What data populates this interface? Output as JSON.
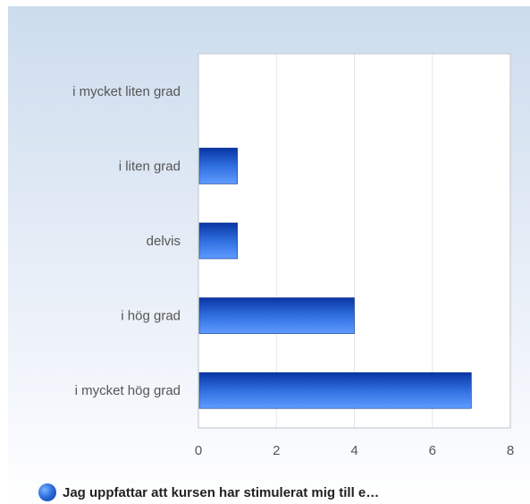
{
  "chart_data": {
    "type": "bar",
    "orientation": "horizontal",
    "categories": [
      "i mycket liten grad",
      "i liten grad",
      "delvis",
      "i hög grad",
      "i mycket hög grad"
    ],
    "series": [
      {
        "name": "Jag uppfattar att kursen har stimulerat mig till e…",
        "values": [
          0,
          1,
          1,
          4,
          7
        ]
      }
    ],
    "xlim": [
      0,
      8
    ],
    "xticks": [
      "0",
      "2",
      "4",
      "6",
      "8"
    ],
    "grid": true,
    "legend_position": "bottom-left",
    "colors": {
      "bar_dark": "#0a35a3",
      "bar_mid": "#2f6fe0",
      "bar_light": "#5f9cff",
      "grid": "#e2e7ee",
      "axis": "#c8ccd2"
    }
  }
}
